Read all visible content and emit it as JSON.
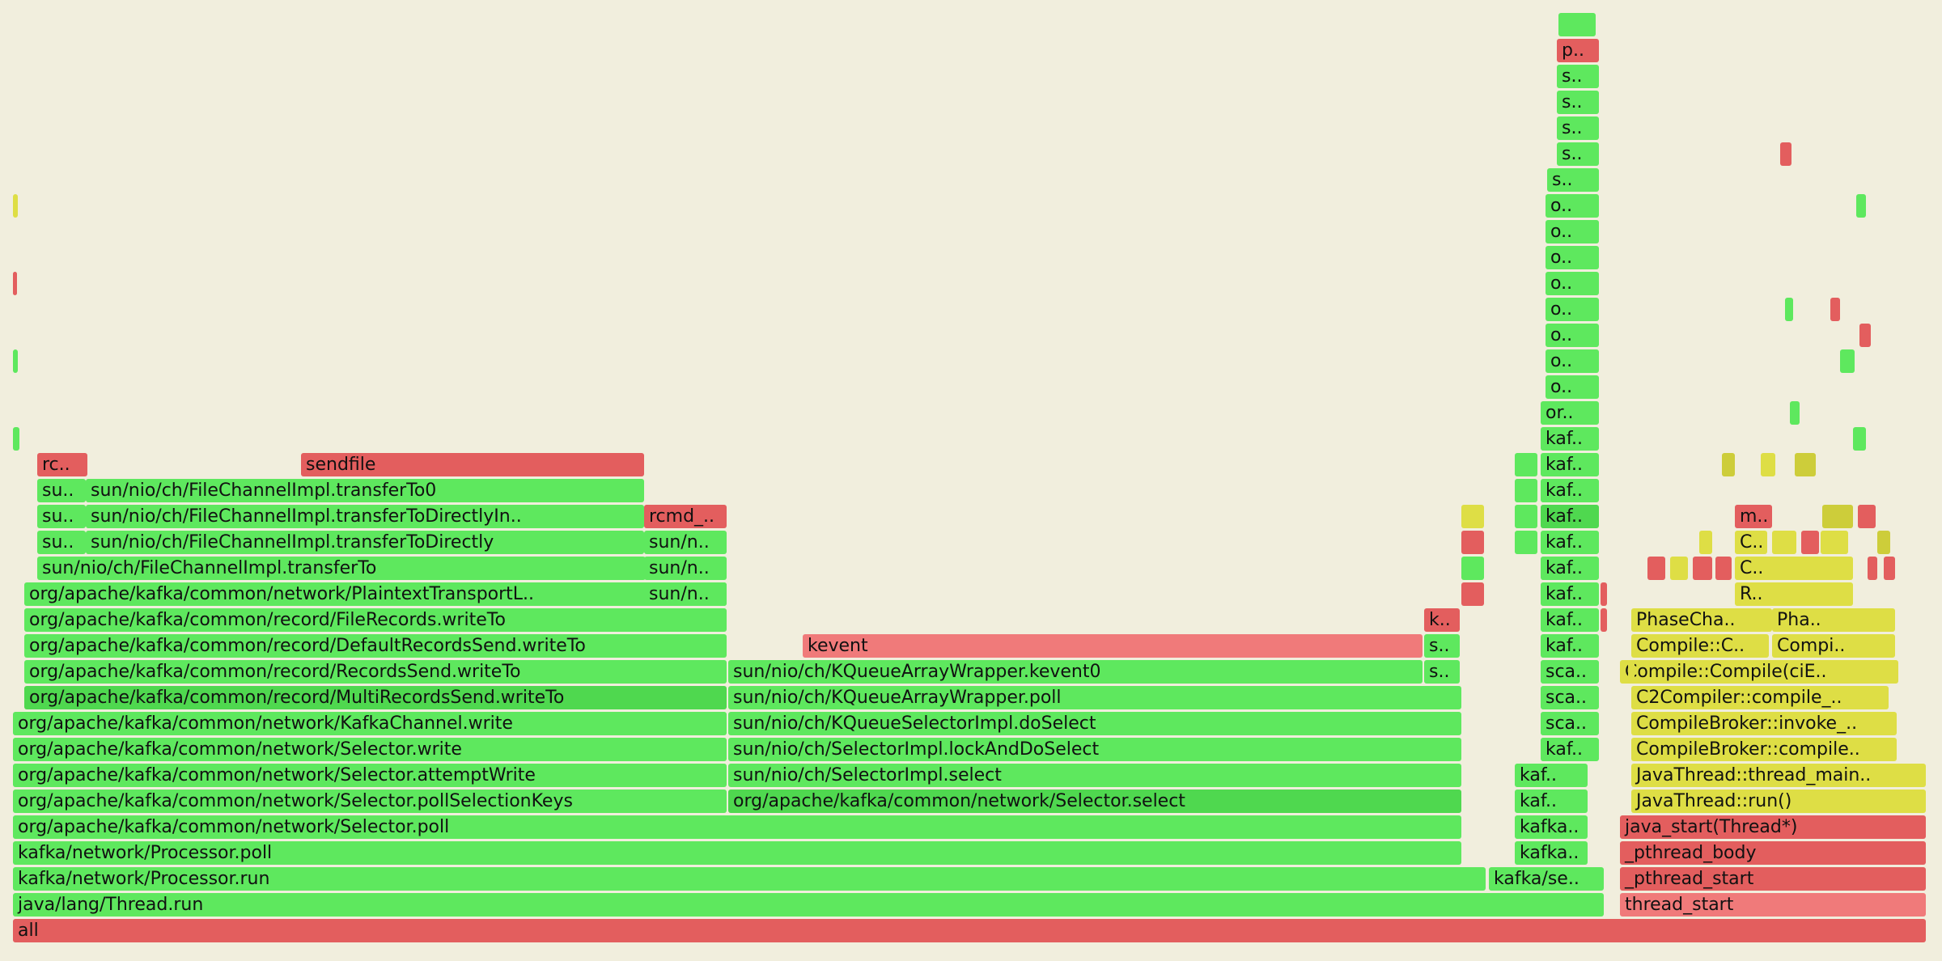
{
  "palette": {
    "red": "#e35e5e",
    "red_light": "#f07a7a",
    "green": "#5ee85e",
    "green_dark": "#4fd84f",
    "yellow": "#dede45",
    "yellow_dark": "#cdcd3a",
    "background": "#f1eedd"
  },
  "frames": [
    {
      "label": "all",
      "c": "red"
    },
    {
      "label": "java/lang/Thread.run",
      "c": "green"
    },
    {
      "label": "thread_start",
      "c": "red_light"
    },
    {
      "label": "kafka/network/Processor.run",
      "c": "green"
    },
    {
      "label": "kafka/se..",
      "c": "green"
    },
    {
      "label": "_pthread_start",
      "c": "red"
    },
    {
      "label": "kafka/network/Processor.poll",
      "c": "green"
    },
    {
      "label": "kafka..",
      "c": "green"
    },
    {
      "label": "_pthread_body",
      "c": "red"
    },
    {
      "label": "org/apache/kafka/common/network/Selector.poll",
      "c": "green"
    },
    {
      "label": "kafka..",
      "c": "green"
    },
    {
      "label": "java_start(Thread*)",
      "c": "red"
    },
    {
      "label": "org/apache/kafka/common/network/Selector.pollSelectionKeys",
      "c": "green"
    },
    {
      "label": "org/apache/kafka/common/network/Selector.select",
      "c": "green_dark"
    },
    {
      "label": "kaf..",
      "c": "green"
    },
    {
      "label": "JavaThread::run()",
      "c": "yellow"
    },
    {
      "label": "org/apache/kafka/common/network/Selector.attemptWrite",
      "c": "green"
    },
    {
      "label": "sun/nio/ch/SelectorImpl.select",
      "c": "green"
    },
    {
      "label": "kaf..",
      "c": "green"
    },
    {
      "label": "JavaThread::thread_main..",
      "c": "yellow"
    },
    {
      "label": "org/apache/kafka/common/network/Selector.write",
      "c": "green"
    },
    {
      "label": "sun/nio/ch/SelectorImpl.lockAndDoSelect",
      "c": "green"
    },
    {
      "label": "kaf..",
      "c": "green"
    },
    {
      "label": "CompileBroker::compile..",
      "c": "yellow"
    },
    {
      "label": "org/apache/kafka/common/network/KafkaChannel.write",
      "c": "green"
    },
    {
      "label": "sun/nio/ch/KQueueSelectorImpl.doSelect",
      "c": "green"
    },
    {
      "label": "sca..",
      "c": "green"
    },
    {
      "label": "CompileBroker::invoke_..",
      "c": "yellow"
    },
    {
      "label": "org/apache/kafka/common/record/MultiRecordsSend.writeTo",
      "c": "green_dark"
    },
    {
      "label": "sun/nio/ch/KQueueArrayWrapper.poll",
      "c": "green"
    },
    {
      "label": "sca..",
      "c": "green"
    },
    {
      "label": "C2Compiler::compile_..",
      "c": "yellow"
    },
    {
      "label": "org/apache/kafka/common/record/RecordsSend.writeTo",
      "c": "green"
    },
    {
      "label": "sun/nio/ch/KQueueArrayWrapper.kevent0",
      "c": "green"
    },
    {
      "label": "s..",
      "c": "green"
    },
    {
      "label": "sca..",
      "c": "green"
    },
    {
      "label": "Compile::Compile(ciE..",
      "c": "yellow"
    },
    {
      "label": "org/apache/kafka/common/record/DefaultRecordsSend.writeTo",
      "c": "green"
    },
    {
      "label": "kevent",
      "c": "red_light"
    },
    {
      "label": "s..",
      "c": "green"
    },
    {
      "label": "kaf..",
      "c": "green"
    },
    {
      "label": "Compile::C..",
      "c": "yellow"
    },
    {
      "label": "Compi..",
      "c": "yellow"
    },
    {
      "label": "org/apache/kafka/common/record/FileRecords.writeTo",
      "c": "green"
    },
    {
      "label": "k..",
      "c": "red"
    },
    {
      "label": "kaf..",
      "c": "green"
    },
    {
      "label": "PhaseCha..",
      "c": "yellow"
    },
    {
      "label": "Pha..",
      "c": "yellow"
    },
    {
      "label": "org/apache/kafka/common/network/PlaintextTransportL..",
      "c": "green"
    },
    {
      "label": "sun/n..",
      "c": "green"
    },
    {
      "label": "kaf..",
      "c": "green"
    },
    {
      "label": "R..",
      "c": "yellow"
    },
    {
      "label": "sun/nio/ch/FileChannelImpl.transferTo",
      "c": "green"
    },
    {
      "label": "sun/n..",
      "c": "green"
    },
    {
      "label": "kaf..",
      "c": "green"
    },
    {
      "label": "C..",
      "c": "yellow"
    },
    {
      "label": "su..",
      "c": "green"
    },
    {
      "label": "sun/nio/ch/FileChannelImpl.transferToDirectly",
      "c": "green"
    },
    {
      "label": "sun/n..",
      "c": "green"
    },
    {
      "label": "kaf..",
      "c": "green"
    },
    {
      "label": "C..",
      "c": "yellow"
    },
    {
      "label": "su..",
      "c": "green"
    },
    {
      "label": "sun/nio/ch/FileChannelImpl.transferToDirectlyIn..",
      "c": "green"
    },
    {
      "label": "rcmd_..",
      "c": "red"
    },
    {
      "label": "kaf..",
      "c": "green_dark"
    },
    {
      "label": "m..",
      "c": "red"
    },
    {
      "label": "su..",
      "c": "green"
    },
    {
      "label": "sun/nio/ch/FileChannelImpl.transferTo0",
      "c": "green"
    },
    {
      "label": "kaf..",
      "c": "green"
    },
    {
      "label": "rc..",
      "c": "red"
    },
    {
      "label": "sendfile",
      "c": "red"
    },
    {
      "label": "kaf..",
      "c": "green"
    },
    {
      "label": "kaf..",
      "c": "green"
    },
    {
      "label": "or..",
      "c": "green"
    },
    {
      "label": "o..",
      "c": "green"
    },
    {
      "label": "o..",
      "c": "green"
    },
    {
      "label": "o..",
      "c": "green"
    },
    {
      "label": "o..",
      "c": "green"
    },
    {
      "label": "o..",
      "c": "green"
    },
    {
      "label": "o..",
      "c": "green"
    },
    {
      "label": "o..",
      "c": "green"
    },
    {
      "label": "o..",
      "c": "green"
    },
    {
      "label": "s..",
      "c": "green"
    },
    {
      "label": "s..",
      "c": "green"
    },
    {
      "label": "s..",
      "c": "green"
    },
    {
      "label": "s..",
      "c": "green"
    },
    {
      "label": "s..",
      "c": "green"
    },
    {
      "label": "p..",
      "c": "red"
    },
    {
      "label": "",
      "c": "green"
    },
    {
      "label": "",
      "c": "green"
    },
    {
      "label": "",
      "c": "green"
    },
    {
      "label": "",
      "c": "red"
    },
    {
      "label": "",
      "c": "yellow"
    },
    {
      "label": "",
      "c": "red"
    },
    {
      "label": "",
      "c": "green"
    },
    {
      "label": "",
      "c": "red"
    },
    {
      "label": "",
      "c": "green"
    },
    {
      "label": "",
      "c": "green"
    },
    {
      "label": "",
      "c": "green"
    },
    {
      "label": "",
      "c": "green"
    },
    {
      "label": "",
      "c": "red"
    },
    {
      "label": "",
      "c": "red"
    },
    {
      "label": "",
      "c": "yellow"
    },
    {
      "label": "",
      "c": "yellow"
    },
    {
      "label": "",
      "c": "yellow_dark"
    },
    {
      "label": "",
      "c": "yellow"
    },
    {
      "label": "",
      "c": "yellow_dark"
    },
    {
      "label": "",
      "c": "yellow"
    },
    {
      "label": "",
      "c": "yellow_dark"
    },
    {
      "label": "",
      "c": "red"
    },
    {
      "label": "",
      "c": "yellow"
    },
    {
      "label": "",
      "c": "red"
    },
    {
      "label": "",
      "c": "red"
    },
    {
      "label": "",
      "c": "yellow"
    },
    {
      "label": "",
      "c": "red"
    },
    {
      "label": "",
      "c": "yellow_dark"
    },
    {
      "label": "",
      "c": "red"
    },
    {
      "label": "",
      "c": "red"
    },
    {
      "label": "",
      "c": "yellow"
    },
    {
      "label": "",
      "c": "red"
    },
    {
      "label": "",
      "c": "green"
    },
    {
      "label": "",
      "c": "green"
    },
    {
      "label": "",
      "c": "green"
    },
    {
      "label": "",
      "c": "green"
    },
    {
      "label": "",
      "c": "green"
    },
    {
      "label": "",
      "c": "red"
    },
    {
      "label": "",
      "c": "red"
    },
    {
      "label": "",
      "c": "red"
    }
  ]
}
